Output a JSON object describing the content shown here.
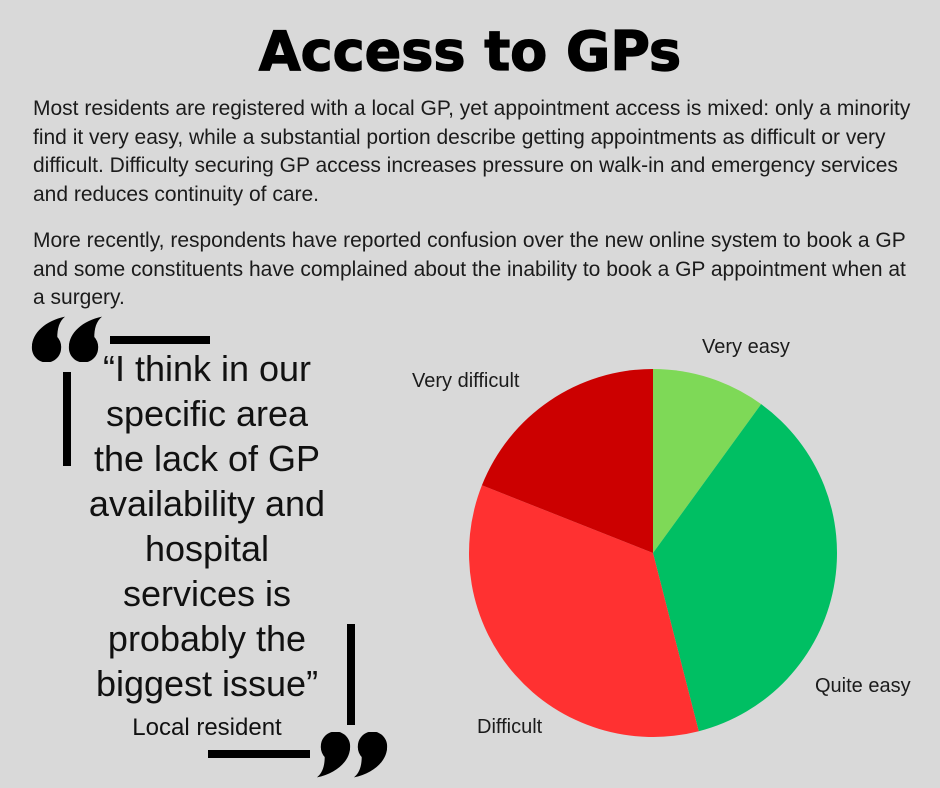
{
  "page": {
    "title": "Access to GPs",
    "background_color": "#D9D9D9",
    "text_color": "#1a1a1a"
  },
  "intro": {
    "paragraph1": "Most residents are registered with a local GP, yet appointment access is mixed: only a minority find it very easy, while a substantial portion describe getting appointments as difficult or very difficult. Difficulty securing GP access increases pressure on walk-in and emergency services and reduces continuity of care.",
    "paragraph2": "More recently, respondents have reported confusion over the new online system to book a GP and some constituents have complained about the inability to book a GP appointment when at a surgery."
  },
  "quote": {
    "text": "“I think in our\nspecific area\nthe lack of GP\navailability and\nhospital\nservices is\nprobably the\nbiggest issue”",
    "attribution": "Local resident",
    "decoration_color": "#000000"
  },
  "chart_data": {
    "type": "pie",
    "title": "",
    "start_angle_deg": 0,
    "direction": "clockwise",
    "legend": "labels-outside",
    "slices": [
      {
        "label": "Very easy",
        "percent": 10,
        "color": "#7ED957"
      },
      {
        "label": "Quite easy",
        "percent": 36,
        "color": "#00BF63"
      },
      {
        "label": "Difficult",
        "percent": 35,
        "color": "#FF3131"
      },
      {
        "label": "Very difficult",
        "percent": 19,
        "color": "#CC0000"
      }
    ]
  }
}
